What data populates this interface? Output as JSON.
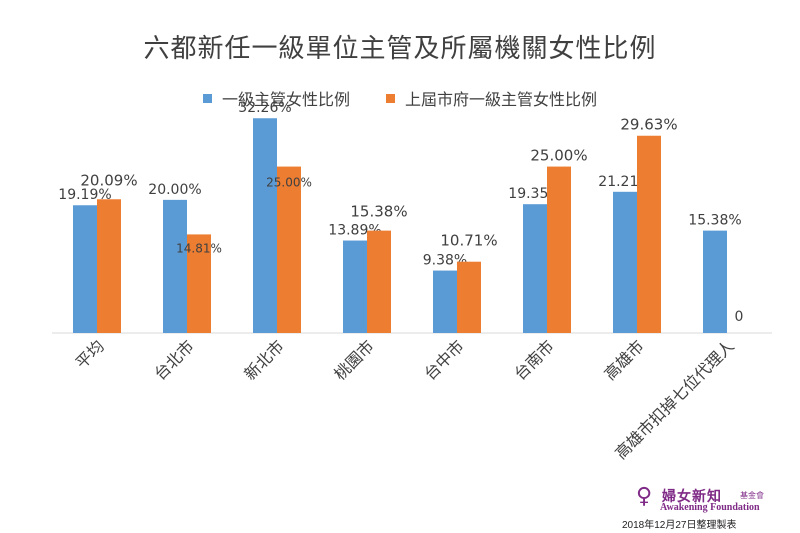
{
  "chart_data": {
    "type": "bar",
    "title": "六都新任一級單位主管及所屬機關女性比例",
    "categories": [
      "平均",
      "台北市",
      "新北市",
      "桃園市",
      "台中市",
      "台南市",
      "高雄市",
      "高雄市扣掉七位代理人"
    ],
    "series": [
      {
        "name": "一級主管女性比例",
        "color": "#5b9bd5",
        "values": [
          19.19,
          20.0,
          32.26,
          13.89,
          9.38,
          19.35,
          21.21,
          15.38
        ],
        "labels": [
          "19.19%",
          "20.00%",
          "32.26%",
          "13.89%",
          "9.38%",
          "19.35%",
          "21.21%",
          "15.38%"
        ]
      },
      {
        "name": "上屆市府一級主管女性比例",
        "color": "#ed7d31",
        "values": [
          20.09,
          14.81,
          25.0,
          15.38,
          10.71,
          25.0,
          29.63,
          0
        ],
        "labels": [
          "20.09%",
          "14.81%",
          "25.00%",
          "15.38%",
          "10.71%",
          "25.00%",
          "29.63%",
          "0"
        ]
      }
    ],
    "ylim": [
      0,
      35
    ],
    "grid": false,
    "legend_position": "top"
  },
  "footer": {
    "logo_name_cn": "婦女新知",
    "logo_name_cn_suffix": "基金會",
    "logo_name_en": "Awakening Foundation",
    "note": "2018年12月27日整理製表"
  }
}
